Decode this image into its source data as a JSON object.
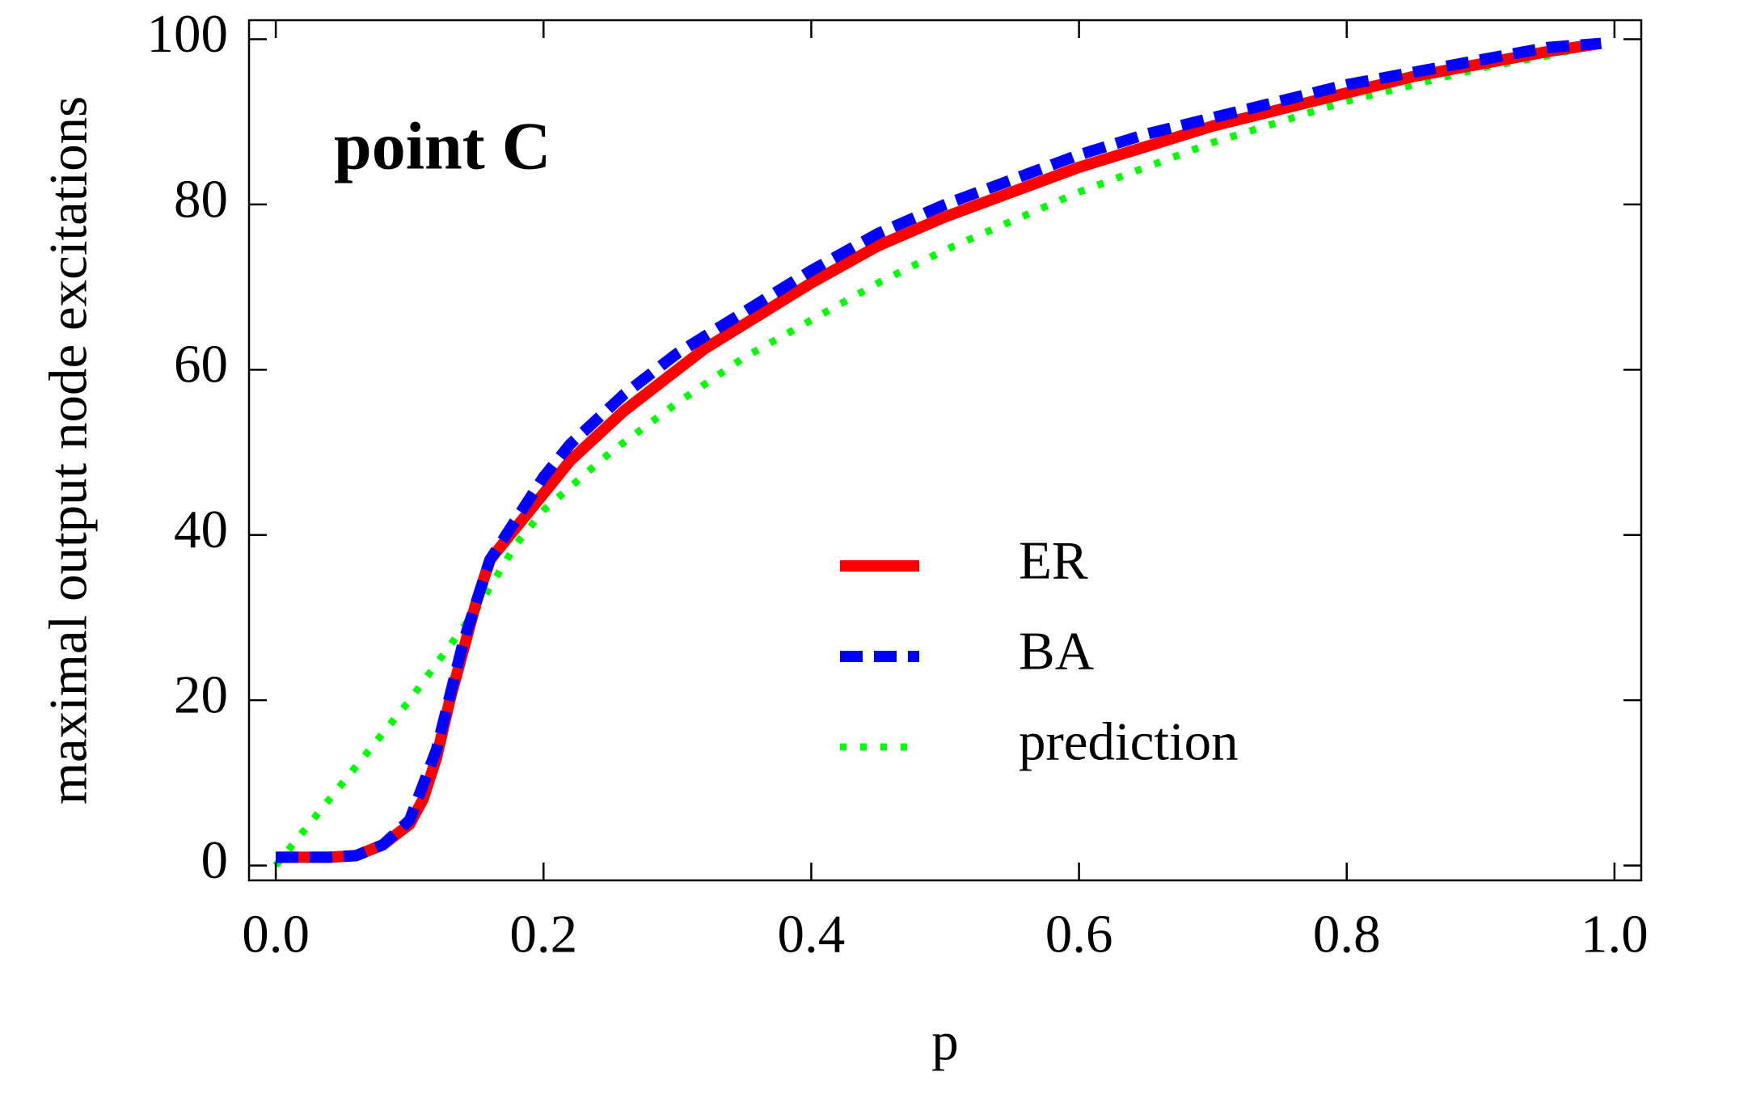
{
  "chart_data": {
    "type": "line",
    "annotation": "point C",
    "x_label": "p",
    "y_label": "maximal output node excitations",
    "xlim": [
      -0.02,
      1.02
    ],
    "ylim": [
      -1.8,
      102.3
    ],
    "xticks": [
      {
        "value": 0,
        "label": "0.0"
      },
      {
        "value": 0.2,
        "label": "0.2"
      },
      {
        "value": 0.4,
        "label": "0.4"
      },
      {
        "value": 0.6,
        "label": "0.6"
      },
      {
        "value": 0.8,
        "label": "0.8"
      },
      {
        "value": 1,
        "label": "1.0"
      }
    ],
    "yticks": [
      0,
      20,
      40,
      60,
      80,
      100
    ],
    "legend": "right",
    "series": [
      {
        "name": "ER",
        "color": "#ff0000",
        "style": "solid",
        "x": [
          0,
          0.02,
          0.04,
          0.06,
          0.08,
          0.1,
          0.11,
          0.12,
          0.13,
          0.14,
          0.15,
          0.16,
          0.18,
          0.2,
          0.22,
          0.24,
          0.26,
          0.28,
          0.3,
          0.32,
          0.34,
          0.36,
          0.38,
          0.4,
          0.45,
          0.5,
          0.55,
          0.6,
          0.65,
          0.7,
          0.75,
          0.8,
          0.85,
          0.9,
          0.95,
          0.99
        ],
        "values": [
          1,
          1,
          1,
          1.2,
          2.5,
          5,
          8,
          13,
          20,
          26,
          32,
          37,
          41,
          45,
          49,
          52,
          55,
          57.5,
          60,
          62.5,
          64.5,
          66.5,
          68.5,
          70.5,
          75,
          78.5,
          81.5,
          84.5,
          87,
          89.5,
          91.5,
          93.5,
          95.5,
          97,
          98.5,
          99.5
        ]
      },
      {
        "name": "BA",
        "color": "#0000ff",
        "style": "dashed",
        "x": [
          0,
          0.02,
          0.04,
          0.06,
          0.08,
          0.1,
          0.12,
          0.14,
          0.16,
          0.18,
          0.2,
          0.22,
          0.24,
          0.26,
          0.28,
          0.3,
          0.32,
          0.34,
          0.36,
          0.38,
          0.4,
          0.45,
          0.5,
          0.55,
          0.6,
          0.65,
          0.7,
          0.75,
          0.8,
          0.85,
          0.9,
          0.95,
          0.99
        ],
        "values": [
          1,
          1,
          1,
          1.2,
          2.5,
          5.5,
          14,
          27,
          37,
          42,
          47,
          51,
          54,
          57,
          59.5,
          62,
          64,
          66,
          68,
          70,
          72,
          76.5,
          80,
          83,
          86,
          88.5,
          90.5,
          92.5,
          94.5,
          96,
          97.5,
          99,
          99.5
        ]
      },
      {
        "name": "prediction",
        "color": "#00ff00",
        "style": "dotted",
        "x": [
          0,
          0.05,
          0.1,
          0.15,
          0.18,
          0.2,
          0.25,
          0.3,
          0.35,
          0.4,
          0.45,
          0.5,
          0.55,
          0.6,
          0.65,
          0.7,
          0.75,
          0.8,
          0.85,
          0.9,
          0.95,
          0.99
        ],
        "values": [
          0,
          10,
          20,
          31,
          39,
          43,
          50,
          56,
          61.5,
          66,
          70.5,
          74.5,
          78,
          81.5,
          84.5,
          87.5,
          90,
          92.5,
          94.5,
          96.5,
          98,
          99.5
        ]
      }
    ]
  }
}
